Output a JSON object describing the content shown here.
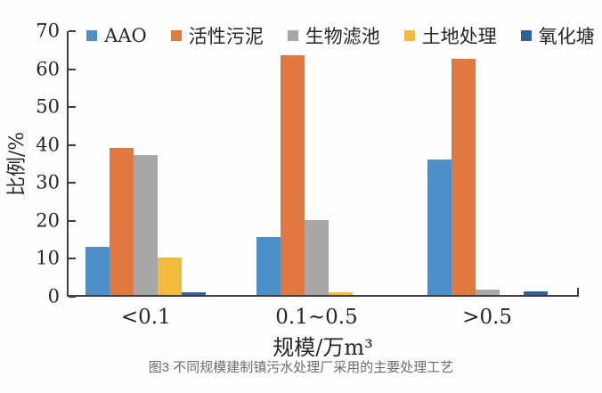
{
  "figure": {
    "caption": "图3 不同规模建制镇污水处理厂采用的主要处理工艺"
  },
  "chart_data": {
    "type": "bar",
    "title": "",
    "categories": [
      "<0.1",
      "0.1~0.5",
      ">0.5"
    ],
    "series": [
      {
        "name": "AAO",
        "color": "#4e8fc7",
        "values": [
          12.8,
          15.3,
          35.8
        ]
      },
      {
        "name": "活性污泥",
        "color": "#e0783f",
        "values": [
          38.8,
          63.3,
          62.3
        ]
      },
      {
        "name": "生物滤池",
        "color": "#a7a7a7",
        "values": [
          36.8,
          19.8,
          1.3
        ]
      },
      {
        "name": "土地处理",
        "color": "#f2bb3b",
        "values": [
          9.8,
          0.8,
          0
        ]
      },
      {
        "name": "氧化塘",
        "color": "#2f5fa5",
        "values": [
          0.7,
          0,
          0.9
        ]
      }
    ],
    "xlabel": "规模/万m³",
    "ylabel": "比例/%",
    "ylim": [
      0,
      70
    ],
    "ytick_step": 10,
    "yticks": [
      0,
      10,
      20,
      30,
      40,
      50,
      60,
      70
    ],
    "grid": false,
    "legend_position": "top"
  }
}
